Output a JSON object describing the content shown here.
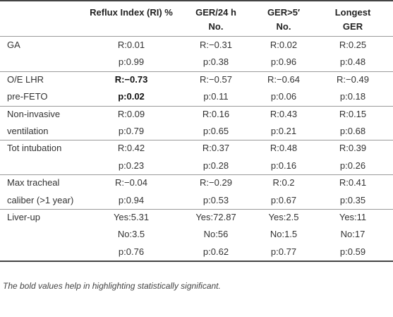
{
  "table": {
    "header": [
      [
        "",
        ""
      ],
      [
        "Reflux Index (RI) %",
        ""
      ],
      [
        "GER/24 h",
        "No."
      ],
      [
        "GER>5′",
        "No."
      ],
      [
        "Longest",
        "GER"
      ]
    ],
    "groups": [
      {
        "label": [
          "GA"
        ],
        "rows": [
          [
            "R:0.01",
            "R:−0.31",
            "R:0.02",
            "R:0.25"
          ],
          [
            "p:0.99",
            "p:0.38",
            "p:0.96",
            "p:0.48"
          ]
        ]
      },
      {
        "label": [
          "O/E LHR",
          "pre-FETO"
        ],
        "bold_column": 0,
        "rows": [
          [
            "R:−0.73",
            "R:−0.57",
            "R:−0.64",
            "R:−0.49"
          ],
          [
            "p:0.02",
            "p:0.11",
            "p:0.06",
            "p:0.18"
          ]
        ]
      },
      {
        "label": [
          "Non-invasive",
          "ventilation"
        ],
        "rows": [
          [
            "R:0.09",
            "R:0.16",
            "R:0.43",
            "R:0.15"
          ],
          [
            "p:0.79",
            "p:0.65",
            "p:0.21",
            "p:0.68"
          ]
        ]
      },
      {
        "label": [
          "Tot intubation"
        ],
        "rows": [
          [
            "R:0.42",
            "R:0.37",
            "R:0.48",
            "R:0.39"
          ],
          [
            "p:0.23",
            "p:0.28",
            "p:0.16",
            "p:0.26"
          ]
        ]
      },
      {
        "label": [
          "Max tracheal",
          "caliber (>1 year)"
        ],
        "rows": [
          [
            "R:−0.04",
            "R:−0.29",
            "R:0.2",
            "R:0.41"
          ],
          [
            "p:0.94",
            "p:0.53",
            "p:0.67",
            "p:0.35"
          ]
        ]
      },
      {
        "label": [
          "Liver-up"
        ],
        "rows": [
          [
            "Yes:5.31",
            "Yes:72.87",
            "Yes:2.5",
            "Yes:11"
          ],
          [
            "No:3.5",
            "No:56",
            "No:1.5",
            "No:17"
          ],
          [
            "p:0.76",
            "p:0.62",
            "p:0.77",
            "p:0.59"
          ]
        ]
      }
    ],
    "footnote": "The bold values help in highlighting statistically significant."
  }
}
